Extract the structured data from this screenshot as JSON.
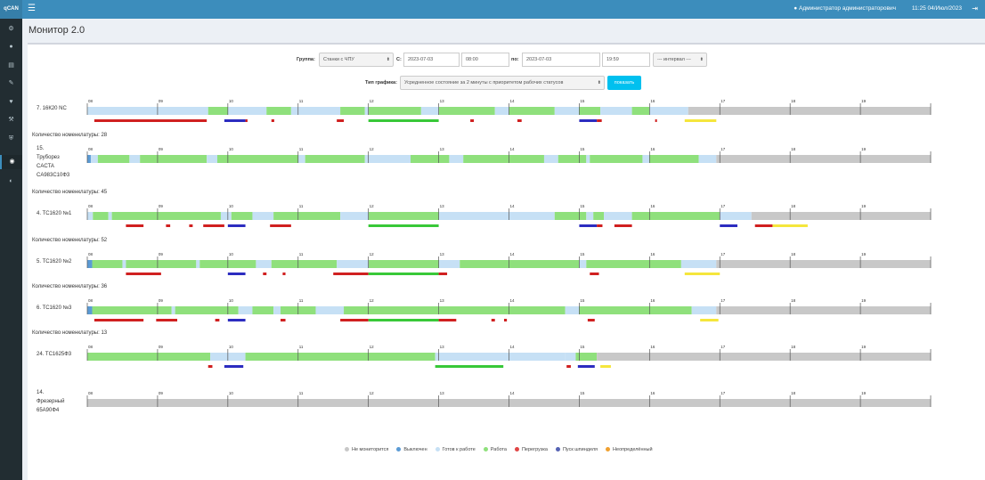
{
  "app": {
    "logo": "qCAN",
    "menu_icon": "hamburger-icon"
  },
  "header": {
    "user": "Администратор администраторович",
    "datetime": "11:25 04/Июл/2023",
    "user_icon": "user-icon",
    "logout_icon": "logout-icon"
  },
  "sidebar": {
    "items": [
      {
        "icon": "gear-icon"
      },
      {
        "icon": "users-icon"
      },
      {
        "icon": "document-icon"
      },
      {
        "icon": "wrench-icon"
      },
      {
        "icon": "heartbeat-icon"
      },
      {
        "icon": "hammer-icon"
      },
      {
        "icon": "shield-icon"
      },
      {
        "icon": "eye-icon",
        "active": true
      },
      {
        "icon": "globe-icon"
      }
    ]
  },
  "page": {
    "title": "Монитор 2.0"
  },
  "filters": {
    "group_label": "Группа:",
    "group_value": "Станки с ЧПУ",
    "from_label": "С:",
    "from_date": "2023-07-03",
    "from_time": "08:00",
    "to_label": "по:",
    "to_date": "2023-07-03",
    "to_time": "19:59",
    "interval_value": "--- интервал ---",
    "chart_type_label": "Тип графика:",
    "chart_type_value": "Усредненное состояние за 2 минуты с приоритетом рабочих статусов",
    "show_button": "показать"
  },
  "legend": [
    {
      "label": "Не мониторится",
      "color": "#c8c8c8"
    },
    {
      "label": "Выключен",
      "color": "#5b9bd5"
    },
    {
      "label": "Готов к работе",
      "color": "#c6e0f5"
    },
    {
      "label": "Работа",
      "color": "#8fe07c"
    },
    {
      "label": "Перегрузка",
      "color": "#e04646"
    },
    {
      "label": "Пуск шпинделя",
      "color": "#5563b4"
    },
    {
      "label": "Неопределённый",
      "color": "#f0a030"
    }
  ],
  "chart_data": {
    "type": "timeline",
    "x_ticks": [
      "08",
      "09",
      "10",
      "11",
      "12",
      "13",
      "14",
      "15",
      "16",
      "17",
      "18",
      "19"
    ],
    "xlim": [
      8,
      20
    ],
    "state_colors": {
      "off": "#5b9bd5",
      "ready": "#c6e0f5",
      "work": "#8fe07c",
      "nm": "#c8c8c8",
      "over": "#d02020",
      "spindle": "#2c2cc0",
      "undef": "#f5e63c",
      "work_line": "#38c838"
    },
    "machines": [
      {
        "name": "7.   16К20 NC",
        "count": "Количество номенклатуры: 28",
        "main": [
          [
            8.0,
            10.7,
            "ready"
          ],
          [
            10.7,
            10.85,
            "off"
          ],
          [
            10.85,
            11.75,
            "ready"
          ],
          [
            11.75,
            12.1,
            "work"
          ],
          [
            12.1,
            12.9,
            "ready"
          ],
          [
            12.9,
            13.1,
            "work"
          ],
          [
            13.1,
            14.0,
            "ready"
          ],
          [
            14.0,
            14.3,
            "work"
          ],
          [
            14.3,
            14.6,
            "ready"
          ],
          [
            14.6,
            15.3,
            "work"
          ],
          [
            15.3,
            15.5,
            "ready"
          ],
          [
            15.5,
            16.0,
            "work"
          ],
          [
            16.0,
            16.3,
            "ready"
          ],
          [
            16.3,
            16.85,
            "work"
          ],
          [
            16.85,
            20.0,
            "nm"
          ]
        ],
        "events": [
          [
            10.7,
            10.72,
            "over"
          ],
          [
            12.0,
            12.95,
            "over"
          ],
          [
            13.05,
            13.1,
            "over"
          ],
          [
            15.0,
            15.05,
            "work_line"
          ],
          [
            15.9,
            16.45,
            "undef"
          ]
        ]
      },
      {
        "name": "",
        "count": "",
        "main": [
          [
            8.0,
            8.13,
            "nm"
          ],
          [
            8.13,
            9.7,
            "work"
          ],
          [
            9.7,
            10.0,
            "work"
          ],
          [
            10.0,
            10.6,
            "ready"
          ],
          [
            10.6,
            11.3,
            "work"
          ],
          [
            11.3,
            12.0,
            "ready"
          ],
          [
            12.0,
            12.7,
            "work"
          ],
          [
            12.7,
            16.0,
            "work"
          ],
          [
            16.0,
            16.85,
            "ready"
          ],
          [
            16.85,
            20.0,
            "nm"
          ]
        ],
        "events": []
      }
    ]
  },
  "rows": [
    {
      "name": "7.   16К20 NC",
      "count": "",
      "main": [
        [
          8.0,
          9.72,
          "ready"
        ],
        [
          9.72,
          10.0,
          "work"
        ],
        [
          10.0,
          10.55,
          "ready"
        ],
        [
          10.55,
          10.9,
          "work"
        ],
        [
          10.9,
          11.6,
          "ready"
        ],
        [
          11.6,
          11.95,
          "work"
        ],
        [
          11.95,
          12.0,
          "ready"
        ],
        [
          12.0,
          12.75,
          "work"
        ],
        [
          12.75,
          13.0,
          "ready"
        ],
        [
          13.0,
          13.8,
          "work"
        ],
        [
          13.8,
          14.0,
          "ready"
        ],
        [
          14.0,
          14.65,
          "work"
        ],
        [
          14.65,
          15.0,
          "ready"
        ],
        [
          15.0,
          15.3,
          "work"
        ],
        [
          15.3,
          15.75,
          "ready"
        ],
        [
          15.75,
          16.0,
          "work"
        ],
        [
          16.0,
          16.55,
          "ready"
        ],
        [
          16.55,
          20.0,
          "nm"
        ]
      ],
      "events": [
        [
          8.1,
          9.7,
          "over"
        ],
        [
          9.95,
          10.25,
          "spindle"
        ],
        [
          10.25,
          10.28,
          "over"
        ],
        [
          10.62,
          10.66,
          "over"
        ],
        [
          11.55,
          11.65,
          "over"
        ],
        [
          12.0,
          13.0,
          "work_line"
        ],
        [
          13.45,
          13.5,
          "over"
        ],
        [
          14.12,
          14.18,
          "over"
        ],
        [
          15.0,
          15.25,
          "spindle"
        ],
        [
          15.25,
          15.32,
          "over"
        ],
        [
          16.08,
          16.1,
          "over"
        ],
        [
          16.5,
          16.95,
          "undef"
        ]
      ]
    },
    {
      "name": "15.\nТруборез\nCACTA\nCA983C10Ф3",
      "count": "Количество номенклатуры: 28",
      "main": [
        [
          8.0,
          8.05,
          "off"
        ],
        [
          8.05,
          8.15,
          "ready"
        ],
        [
          8.15,
          8.6,
          "work"
        ],
        [
          8.6,
          8.75,
          "ready"
        ],
        [
          8.75,
          9.7,
          "work"
        ],
        [
          9.7,
          9.85,
          "ready"
        ],
        [
          9.85,
          11.0,
          "work"
        ],
        [
          11.0,
          11.1,
          "ready"
        ],
        [
          11.1,
          11.95,
          "work"
        ],
        [
          11.95,
          12.6,
          "ready"
        ],
        [
          12.6,
          13.15,
          "work"
        ],
        [
          13.15,
          13.35,
          "ready"
        ],
        [
          13.35,
          14.5,
          "work"
        ],
        [
          14.5,
          14.7,
          "ready"
        ],
        [
          14.7,
          15.1,
          "work"
        ],
        [
          15.1,
          15.15,
          "ready"
        ],
        [
          15.15,
          15.9,
          "work"
        ],
        [
          15.9,
          16.0,
          "ready"
        ],
        [
          16.0,
          16.7,
          "work"
        ],
        [
          16.7,
          16.95,
          "ready"
        ],
        [
          16.95,
          20.0,
          "nm"
        ]
      ],
      "events": []
    },
    {
      "name": "4.   TC1620 №1",
      "count": "Количество номенклатуры: 45",
      "main": [
        [
          8.0,
          8.08,
          "ready"
        ],
        [
          8.08,
          8.3,
          "work"
        ],
        [
          8.3,
          8.35,
          "ready"
        ],
        [
          8.35,
          9.9,
          "work"
        ],
        [
          9.9,
          10.05,
          "ready"
        ],
        [
          10.05,
          10.35,
          "work"
        ],
        [
          10.35,
          10.65,
          "ready"
        ],
        [
          10.65,
          11.6,
          "work"
        ],
        [
          11.6,
          12.0,
          "ready"
        ],
        [
          12.0,
          13.0,
          "work"
        ],
        [
          13.0,
          14.65,
          "ready"
        ],
        [
          14.65,
          15.1,
          "work"
        ],
        [
          15.1,
          15.2,
          "ready"
        ],
        [
          15.2,
          15.35,
          "work"
        ],
        [
          15.35,
          15.75,
          "ready"
        ],
        [
          15.75,
          16.0,
          "work"
        ],
        [
          16.0,
          17.0,
          "work"
        ],
        [
          17.0,
          17.45,
          "ready"
        ],
        [
          17.45,
          20.0,
          "nm"
        ]
      ],
      "events": [
        [
          8.55,
          8.8,
          "over"
        ],
        [
          9.12,
          9.18,
          "over"
        ],
        [
          9.45,
          9.5,
          "over"
        ],
        [
          9.65,
          9.95,
          "over"
        ],
        [
          10.0,
          10.25,
          "spindle"
        ],
        [
          10.6,
          10.9,
          "over"
        ],
        [
          12.0,
          13.0,
          "work_line"
        ],
        [
          15.0,
          15.25,
          "spindle"
        ],
        [
          15.25,
          15.33,
          "over"
        ],
        [
          15.5,
          15.75,
          "over"
        ],
        [
          17.0,
          17.25,
          "spindle"
        ],
        [
          17.5,
          17.75,
          "over"
        ],
        [
          17.75,
          18.25,
          "undef"
        ]
      ]
    },
    {
      "name": "5.   TC1620 №2",
      "count": "Количество номенклатуры: 52",
      "main": [
        [
          8.0,
          8.07,
          "off"
        ],
        [
          8.07,
          8.5,
          "work"
        ],
        [
          8.5,
          8.55,
          "ready"
        ],
        [
          8.55,
          9.55,
          "work"
        ],
        [
          9.55,
          9.6,
          "ready"
        ],
        [
          9.6,
          10.4,
          "work"
        ],
        [
          10.4,
          10.62,
          "ready"
        ],
        [
          10.62,
          11.55,
          "work"
        ],
        [
          11.55,
          12.0,
          "ready"
        ],
        [
          12.0,
          13.0,
          "work"
        ],
        [
          13.0,
          13.3,
          "ready"
        ],
        [
          13.3,
          15.0,
          "work"
        ],
        [
          15.0,
          15.1,
          "ready"
        ],
        [
          15.1,
          16.45,
          "work"
        ],
        [
          16.45,
          16.95,
          "ready"
        ],
        [
          16.95,
          20.0,
          "nm"
        ]
      ],
      "events": [
        [
          8.55,
          9.05,
          "over"
        ],
        [
          10.0,
          10.25,
          "spindle"
        ],
        [
          10.5,
          10.55,
          "over"
        ],
        [
          10.78,
          10.82,
          "over"
        ],
        [
          11.5,
          12.0,
          "over"
        ],
        [
          12.0,
          13.0,
          "work_line"
        ],
        [
          13.0,
          13.12,
          "over"
        ],
        [
          15.15,
          15.28,
          "over"
        ],
        [
          16.5,
          17.0,
          "undef"
        ]
      ]
    },
    {
      "name": "6.   TC1620 №3",
      "count": "Количество номенклатуры: 36",
      "main": [
        [
          8.0,
          8.07,
          "off"
        ],
        [
          8.07,
          9.2,
          "work"
        ],
        [
          9.2,
          9.25,
          "ready"
        ],
        [
          9.25,
          10.15,
          "work"
        ],
        [
          10.15,
          10.35,
          "ready"
        ],
        [
          10.35,
          10.65,
          "work"
        ],
        [
          10.65,
          10.75,
          "ready"
        ],
        [
          10.75,
          11.25,
          "work"
        ],
        [
          11.25,
          11.65,
          "ready"
        ],
        [
          11.65,
          12.0,
          "work"
        ],
        [
          12.0,
          13.0,
          "work"
        ],
        [
          13.0,
          14.8,
          "work"
        ],
        [
          14.8,
          15.0,
          "ready"
        ],
        [
          15.0,
          16.6,
          "work"
        ],
        [
          16.6,
          16.95,
          "ready"
        ],
        [
          16.95,
          20.0,
          "nm"
        ]
      ],
      "events": [
        [
          8.1,
          8.8,
          "over"
        ],
        [
          8.98,
          9.28,
          "over"
        ],
        [
          9.82,
          9.88,
          "over"
        ],
        [
          10.0,
          10.25,
          "spindle"
        ],
        [
          10.75,
          10.82,
          "over"
        ],
        [
          11.6,
          12.0,
          "over"
        ],
        [
          12.0,
          13.0,
          "work_line"
        ],
        [
          13.0,
          13.25,
          "over"
        ],
        [
          13.75,
          13.8,
          "over"
        ],
        [
          13.93,
          13.97,
          "over"
        ],
        [
          15.12,
          15.22,
          "over"
        ],
        [
          16.72,
          16.98,
          "undef"
        ]
      ]
    },
    {
      "name": "24.  TC1625Ф3",
      "count": "Количество номенклатуры: 13",
      "main": [
        [
          8.0,
          9.75,
          "work"
        ],
        [
          9.75,
          10.25,
          "ready"
        ],
        [
          10.25,
          12.95,
          "work"
        ],
        [
          12.95,
          14.8,
          "ready"
        ],
        [
          14.8,
          14.95,
          "ready"
        ],
        [
          14.95,
          15.25,
          "work"
        ],
        [
          15.25,
          20.0,
          "nm"
        ]
      ],
      "events": [
        [
          9.72,
          9.78,
          "over"
        ],
        [
          9.95,
          10.22,
          "spindle"
        ],
        [
          12.95,
          13.92,
          "work_line"
        ],
        [
          14.82,
          14.88,
          "over"
        ],
        [
          14.98,
          15.22,
          "spindle"
        ],
        [
          15.3,
          15.45,
          "undef"
        ]
      ]
    },
    {
      "name": "14.\nФрезерный\n65А90Ф4",
      "count": "",
      "main": [
        [
          8.0,
          20.0,
          "nm"
        ]
      ],
      "events": []
    }
  ]
}
